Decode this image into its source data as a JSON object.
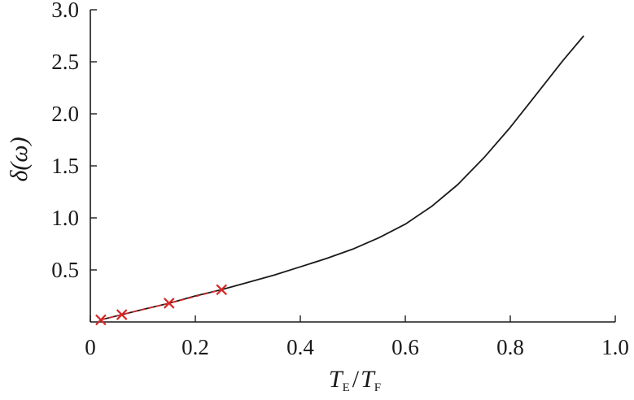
{
  "chart_data": {
    "type": "line",
    "xlabel": "T_E/T_F",
    "xlabel_main1": "T",
    "xlabel_sub1": "E",
    "xlabel_slash": "/",
    "xlabel_main2": "T",
    "xlabel_sub2": "F",
    "ylabel": "δ(ω)",
    "xlim": [
      0,
      1.0
    ],
    "ylim": [
      0,
      3.0
    ],
    "x_ticks": [
      0,
      0.2,
      0.4,
      0.6,
      0.8,
      1.0
    ],
    "x_tick_labels": [
      "0",
      "0.2",
      "0.4",
      "0.6",
      "0.8",
      "1.0"
    ],
    "y_ticks": [
      0.5,
      1.0,
      1.5,
      2.0,
      2.5,
      3.0
    ],
    "y_tick_labels": [
      "0.5",
      "1.0",
      "1.5",
      "2.0",
      "2.5",
      "3.0"
    ],
    "grid": false,
    "series": [
      {
        "style": "solid",
        "color": "#1a1a1a",
        "x": [
          0.02,
          0.06,
          0.1,
          0.15,
          0.2,
          0.25,
          0.3,
          0.35,
          0.4,
          0.45,
          0.5,
          0.55,
          0.6,
          0.65,
          0.7,
          0.75,
          0.8,
          0.85,
          0.9,
          0.94
        ],
        "y": [
          0.02,
          0.07,
          0.12,
          0.18,
          0.25,
          0.31,
          0.38,
          0.45,
          0.53,
          0.61,
          0.7,
          0.81,
          0.94,
          1.11,
          1.32,
          1.58,
          1.87,
          2.19,
          2.51,
          2.75
        ]
      },
      {
        "style": "dashed-markers",
        "marker": "x",
        "color": "#d62728",
        "x": [
          0.02,
          0.06,
          0.15,
          0.25
        ],
        "y": [
          0.02,
          0.07,
          0.18,
          0.31
        ]
      }
    ]
  }
}
